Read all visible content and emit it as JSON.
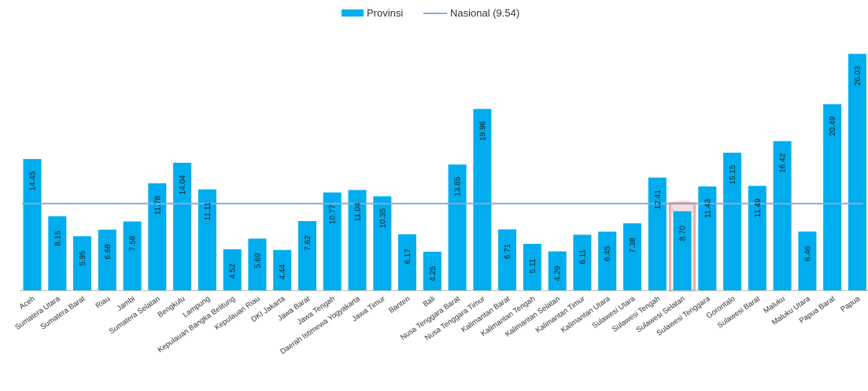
{
  "chart_data": {
    "type": "bar",
    "categories": [
      "Aceh",
      "Sumatera Utara",
      "Sumatera Barat",
      "Riau",
      "Jambi",
      "Sumatera Selatan",
      "Bengkulu",
      "Lampung",
      "Kepulauan Bangka Belitung",
      "Kepulauan Riau",
      "DKI Jakarta",
      "Jawa Barat",
      "Jawa Tengah",
      "Daerah Istimewa Yogyakarta",
      "Jawa Timur",
      "Banten",
      "Bali",
      "Nusa Tenggara Barat",
      "Nusa Tenggara Timur",
      "Kalimantan Barat",
      "Kalimantan Tengah",
      "Kalimantan Selatan",
      "Kalimantan Timur",
      "Kalimantan Utara",
      "Sulawesi Utara",
      "Sulawesi Tengah",
      "Sulawesi Selatan",
      "Sulawesi Tenggara",
      "Gorontalo",
      "Sulawesi Barat",
      "Maluku",
      "Maluku Utara",
      "Papua Barat",
      "Papua"
    ],
    "series": [
      {
        "name": "Provinsi",
        "values": [
          14.45,
          8.15,
          5.95,
          6.68,
          7.58,
          11.78,
          14.04,
          11.11,
          4.52,
          5.69,
          4.44,
          7.62,
          10.77,
          11.04,
          10.35,
          6.17,
          4.25,
          13.85,
          19.96,
          6.71,
          5.11,
          4.29,
          6.11,
          6.45,
          7.38,
          12.41,
          8.7,
          11.43,
          15.15,
          11.49,
          16.42,
          6.46,
          20.49,
          26.03
        ],
        "value_labels": [
          "14.45",
          "8.15",
          "5.95",
          "6.68",
          "7.58",
          "11.78",
          "14.04",
          "11.11",
          "4.52",
          "5.69",
          "4.44",
          "7.62",
          "10.77",
          "11.04",
          "10.35",
          "6.17",
          "4.25",
          "13.85",
          "19.96",
          "6.71",
          "5.11",
          "4.29",
          "6.11",
          "6.45",
          "7.38",
          "12.41",
          "8.70",
          "11.43",
          "15.15",
          "11.49",
          "16.42",
          "6.46",
          "20.49",
          "26.03"
        ]
      }
    ],
    "reference_line": {
      "name": "Nasional (9.54)",
      "value": 9.54
    },
    "highlighted_category": "Sulawesi Selatan",
    "ylim": [
      0,
      26.5
    ],
    "legend": {
      "position": "top-center"
    },
    "grid": false
  },
  "colors": {
    "bar": "#00aeef",
    "line": "#8fa8d8",
    "highlight": "#e8a0a0",
    "axis": "#bfbfbf"
  }
}
